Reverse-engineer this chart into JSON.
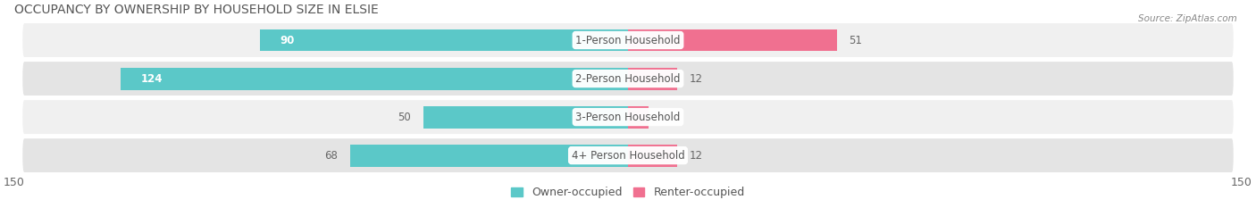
{
  "title": "OCCUPANCY BY OWNERSHIP BY HOUSEHOLD SIZE IN ELSIE",
  "source": "Source: ZipAtlas.com",
  "categories": [
    "1-Person Household",
    "2-Person Household",
    "3-Person Household",
    "4+ Person Household"
  ],
  "owner_values": [
    90,
    124,
    50,
    68
  ],
  "renter_values": [
    51,
    12,
    5,
    12
  ],
  "owner_color": "#5bc8c8",
  "renter_color": "#f07090",
  "axis_max": 150,
  "axis_min": -150,
  "row_bg_colors": [
    "#f0f0f0",
    "#e4e4e4"
  ],
  "title_fontsize": 10,
  "label_fontsize": 8.5,
  "tick_fontsize": 9,
  "legend_fontsize": 9
}
